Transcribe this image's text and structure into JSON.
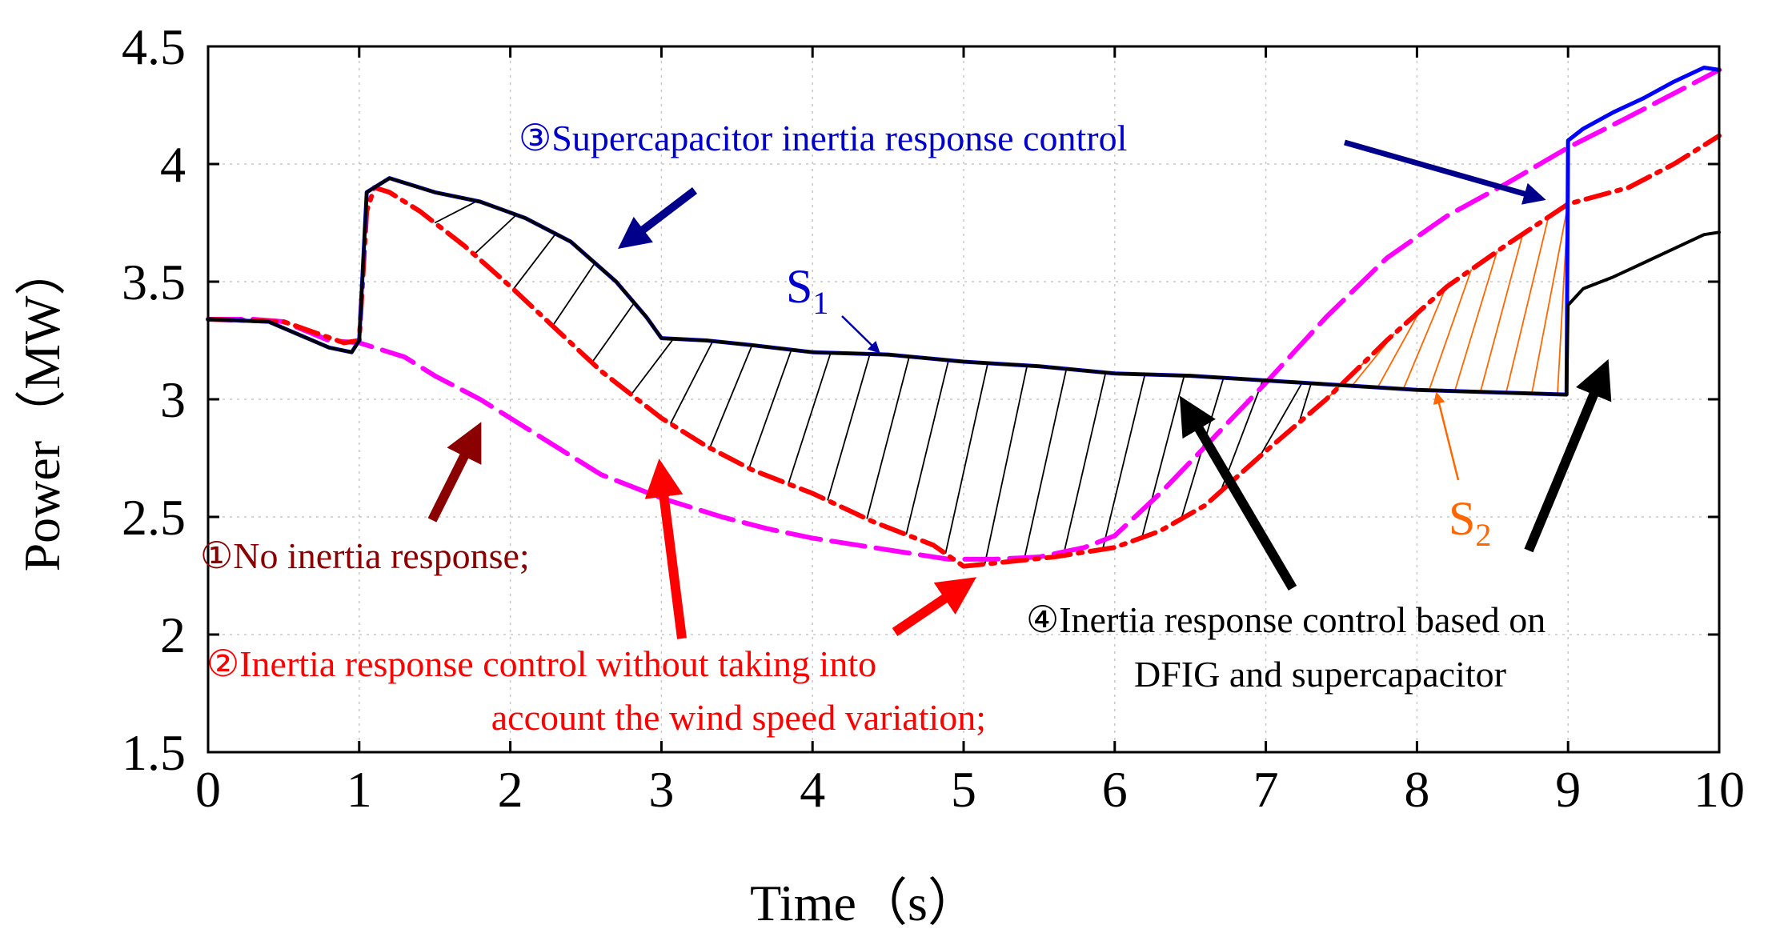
{
  "chart_data": {
    "type": "line",
    "xlabel": "Time（s）",
    "ylabel": "Power（MW）",
    "xlim": [
      0,
      10
    ],
    "ylim": [
      1.5,
      4.5
    ],
    "grid": true,
    "x_ticks": [
      0,
      1,
      2,
      3,
      4,
      5,
      6,
      7,
      8,
      9,
      10
    ],
    "x_tick_labels": [
      "0",
      "1",
      "2",
      "3",
      "4",
      "5",
      "6",
      "7",
      "8",
      "9",
      "10"
    ],
    "y_ticks": [
      1.5,
      2,
      2.5,
      3,
      3.5,
      4,
      4.5
    ],
    "y_tick_labels": [
      "1.5",
      "2",
      "2.5",
      "3",
      "3.5",
      "4",
      "4.5"
    ],
    "series": [
      {
        "name": "No inertia response",
        "color": "#ff00ff",
        "style": "long-dash",
        "x": [
          0,
          0.3,
          0.5,
          0.8,
          1.0,
          1.1,
          1.3,
          1.5,
          1.8,
          2.0,
          2.3,
          2.6,
          3.0,
          3.4,
          3.7,
          4.0,
          4.3,
          4.6,
          4.9,
          5.2,
          5.5,
          5.8,
          6.0,
          6.3,
          6.6,
          7.0,
          7.4,
          7.8,
          8.2,
          8.6,
          9.0,
          9.4,
          9.7,
          10.0
        ],
        "y": [
          3.34,
          3.34,
          3.33,
          3.25,
          3.24,
          3.22,
          3.18,
          3.1,
          3.0,
          2.92,
          2.8,
          2.68,
          2.58,
          2.5,
          2.45,
          2.41,
          2.38,
          2.35,
          2.32,
          2.32,
          2.33,
          2.37,
          2.42,
          2.6,
          2.8,
          3.07,
          3.35,
          3.6,
          3.78,
          3.92,
          4.07,
          4.2,
          4.3,
          4.4
        ]
      },
      {
        "name": "Inertia response control without taking into account the wind speed variation",
        "color": "#ff0000",
        "style": "dash-dot",
        "x": [
          0,
          0.5,
          0.9,
          1.0,
          1.05,
          1.1,
          1.2,
          1.4,
          1.7,
          2.0,
          2.3,
          2.6,
          3.0,
          3.3,
          3.6,
          4.0,
          4.4,
          4.8,
          5.0,
          5.3,
          5.6,
          6.0,
          6.3,
          6.6,
          7.0,
          7.4,
          7.8,
          8.2,
          8.6,
          9.0,
          9.4,
          9.7,
          10.0
        ],
        "y": [
          3.34,
          3.33,
          3.24,
          3.25,
          3.8,
          3.9,
          3.88,
          3.8,
          3.65,
          3.48,
          3.3,
          3.12,
          2.92,
          2.8,
          2.7,
          2.6,
          2.48,
          2.38,
          2.29,
          2.31,
          2.33,
          2.37,
          2.44,
          2.55,
          2.78,
          3.0,
          3.25,
          3.48,
          3.66,
          3.83,
          3.9,
          4.0,
          4.12
        ]
      },
      {
        "name": "Supercapacitor inertia response control",
        "color": "#0000ff",
        "style": "solid",
        "x": [
          0,
          0.4,
          0.8,
          0.95,
          1.0,
          1.05,
          1.2,
          1.5,
          1.8,
          2.1,
          2.4,
          2.7,
          2.9,
          3.0,
          3.3,
          3.6,
          4.0,
          4.5,
          5.0,
          5.5,
          6.0,
          6.5,
          7.0,
          7.5,
          8.0,
          8.5,
          8.99,
          9.0,
          9.1,
          9.3,
          9.5,
          9.7,
          9.9,
          10.0
        ],
        "y": [
          3.34,
          3.33,
          3.22,
          3.2,
          3.25,
          3.88,
          3.94,
          3.88,
          3.84,
          3.77,
          3.67,
          3.5,
          3.35,
          3.26,
          3.25,
          3.23,
          3.2,
          3.19,
          3.16,
          3.14,
          3.11,
          3.1,
          3.08,
          3.06,
          3.04,
          3.03,
          3.02,
          4.1,
          4.15,
          4.22,
          4.28,
          4.35,
          4.41,
          4.4
        ]
      },
      {
        "name": "Inertia response control based on DFIG and supercapacitor",
        "color": "#000000",
        "style": "solid",
        "x": [
          0,
          0.4,
          0.8,
          0.95,
          1.0,
          1.05,
          1.2,
          1.5,
          1.8,
          2.1,
          2.4,
          2.7,
          2.9,
          3.0,
          3.3,
          3.6,
          4.0,
          4.5,
          5.0,
          5.5,
          6.0,
          6.5,
          7.0,
          7.5,
          8.0,
          8.5,
          8.99,
          9.0,
          9.1,
          9.3,
          9.5,
          9.7,
          9.9,
          10.0
        ],
        "y": [
          3.34,
          3.33,
          3.22,
          3.2,
          3.25,
          3.88,
          3.94,
          3.88,
          3.84,
          3.77,
          3.67,
          3.5,
          3.35,
          3.26,
          3.25,
          3.23,
          3.2,
          3.19,
          3.16,
          3.14,
          3.11,
          3.1,
          3.08,
          3.06,
          3.04,
          3.03,
          3.02,
          3.4,
          3.47,
          3.52,
          3.58,
          3.64,
          3.7,
          3.71
        ]
      }
    ],
    "annotations": {
      "s1_main": "S",
      "s1_sub": "1",
      "s2_main": "S",
      "s2_sub": "2",
      "label1": "①No inertia response;",
      "label2_line1": "②Inertia response control without taking into",
      "label2_line2": "account the wind speed variation;",
      "label3": "③Supercapacitor inertia response control",
      "label4_line1": "④Inertia response control based on",
      "label4_line2": "DFIG and supercapacitor"
    },
    "hatch_regions": [
      {
        "name": "S1",
        "color": "#000000",
        "x_range": [
          1.5,
          7.3
        ],
        "between": [
          "Inertia response control without taking into account the wind speed variation",
          "Inertia response control based on DFIG and supercapacitor"
        ]
      },
      {
        "name": "S2",
        "color": "#ff6600",
        "x_range": [
          7.4,
          9.0
        ],
        "between": [
          "Inertia response control based on DFIG and supercapacitor",
          "Inertia response control without taking into account the wind speed variation"
        ]
      }
    ],
    "colors": {
      "label1": "#8b0000",
      "label2": "#ff0000",
      "label3": "#0000cc",
      "label4": "#000000",
      "arrow1": "#8b0000",
      "arrow2": "#ff0000",
      "arrow3": "#00008b",
      "arrow4": "#000000",
      "s1": "#0000cc",
      "s2": "#ff6600"
    }
  }
}
